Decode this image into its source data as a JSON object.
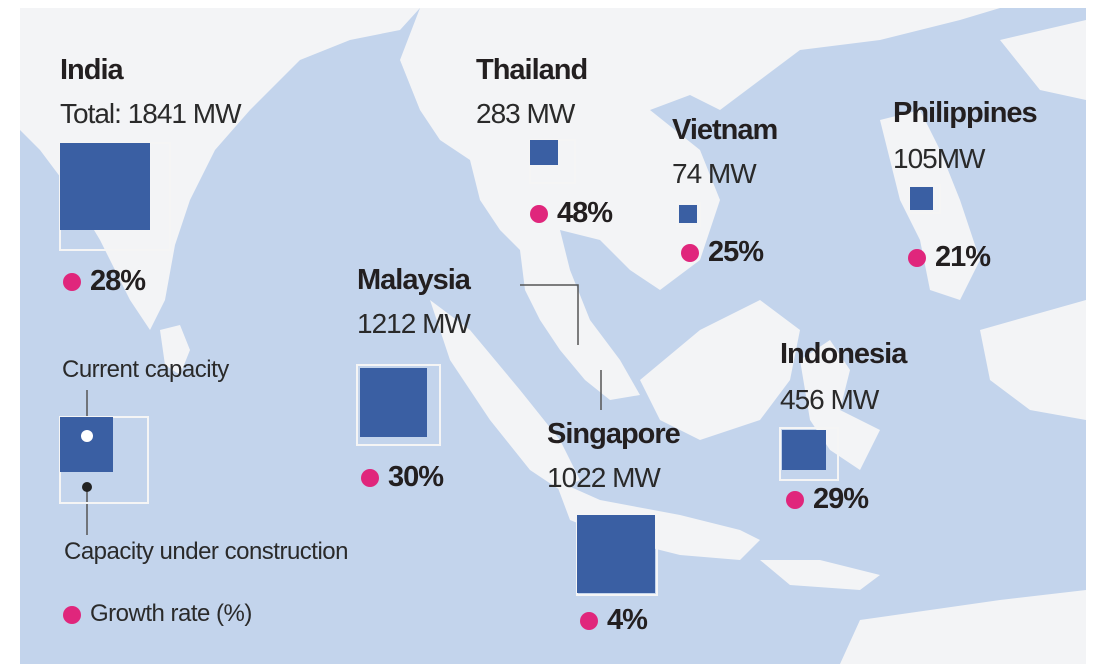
{
  "countries": [
    {
      "name": "India",
      "capacity": "Total: 1841 MW",
      "growth": "28%"
    },
    {
      "name": "Thailand",
      "capacity": "283 MW",
      "growth": "48%"
    },
    {
      "name": "Vietnam",
      "capacity": "74 MW",
      "growth": "25%"
    },
    {
      "name": "Philippines",
      "capacity": "105MW",
      "growth": "21%"
    },
    {
      "name": "Malaysia",
      "capacity": "1212 MW",
      "growth": "30%"
    },
    {
      "name": "Singapore",
      "capacity": "1022 MW",
      "growth": "4%"
    },
    {
      "name": "Indonesia",
      "capacity": "456 MW",
      "growth": "29%"
    }
  ],
  "legend": {
    "current": "Current capacity",
    "construction": "Capacity under construction",
    "growth": "Growth rate (%)"
  }
}
